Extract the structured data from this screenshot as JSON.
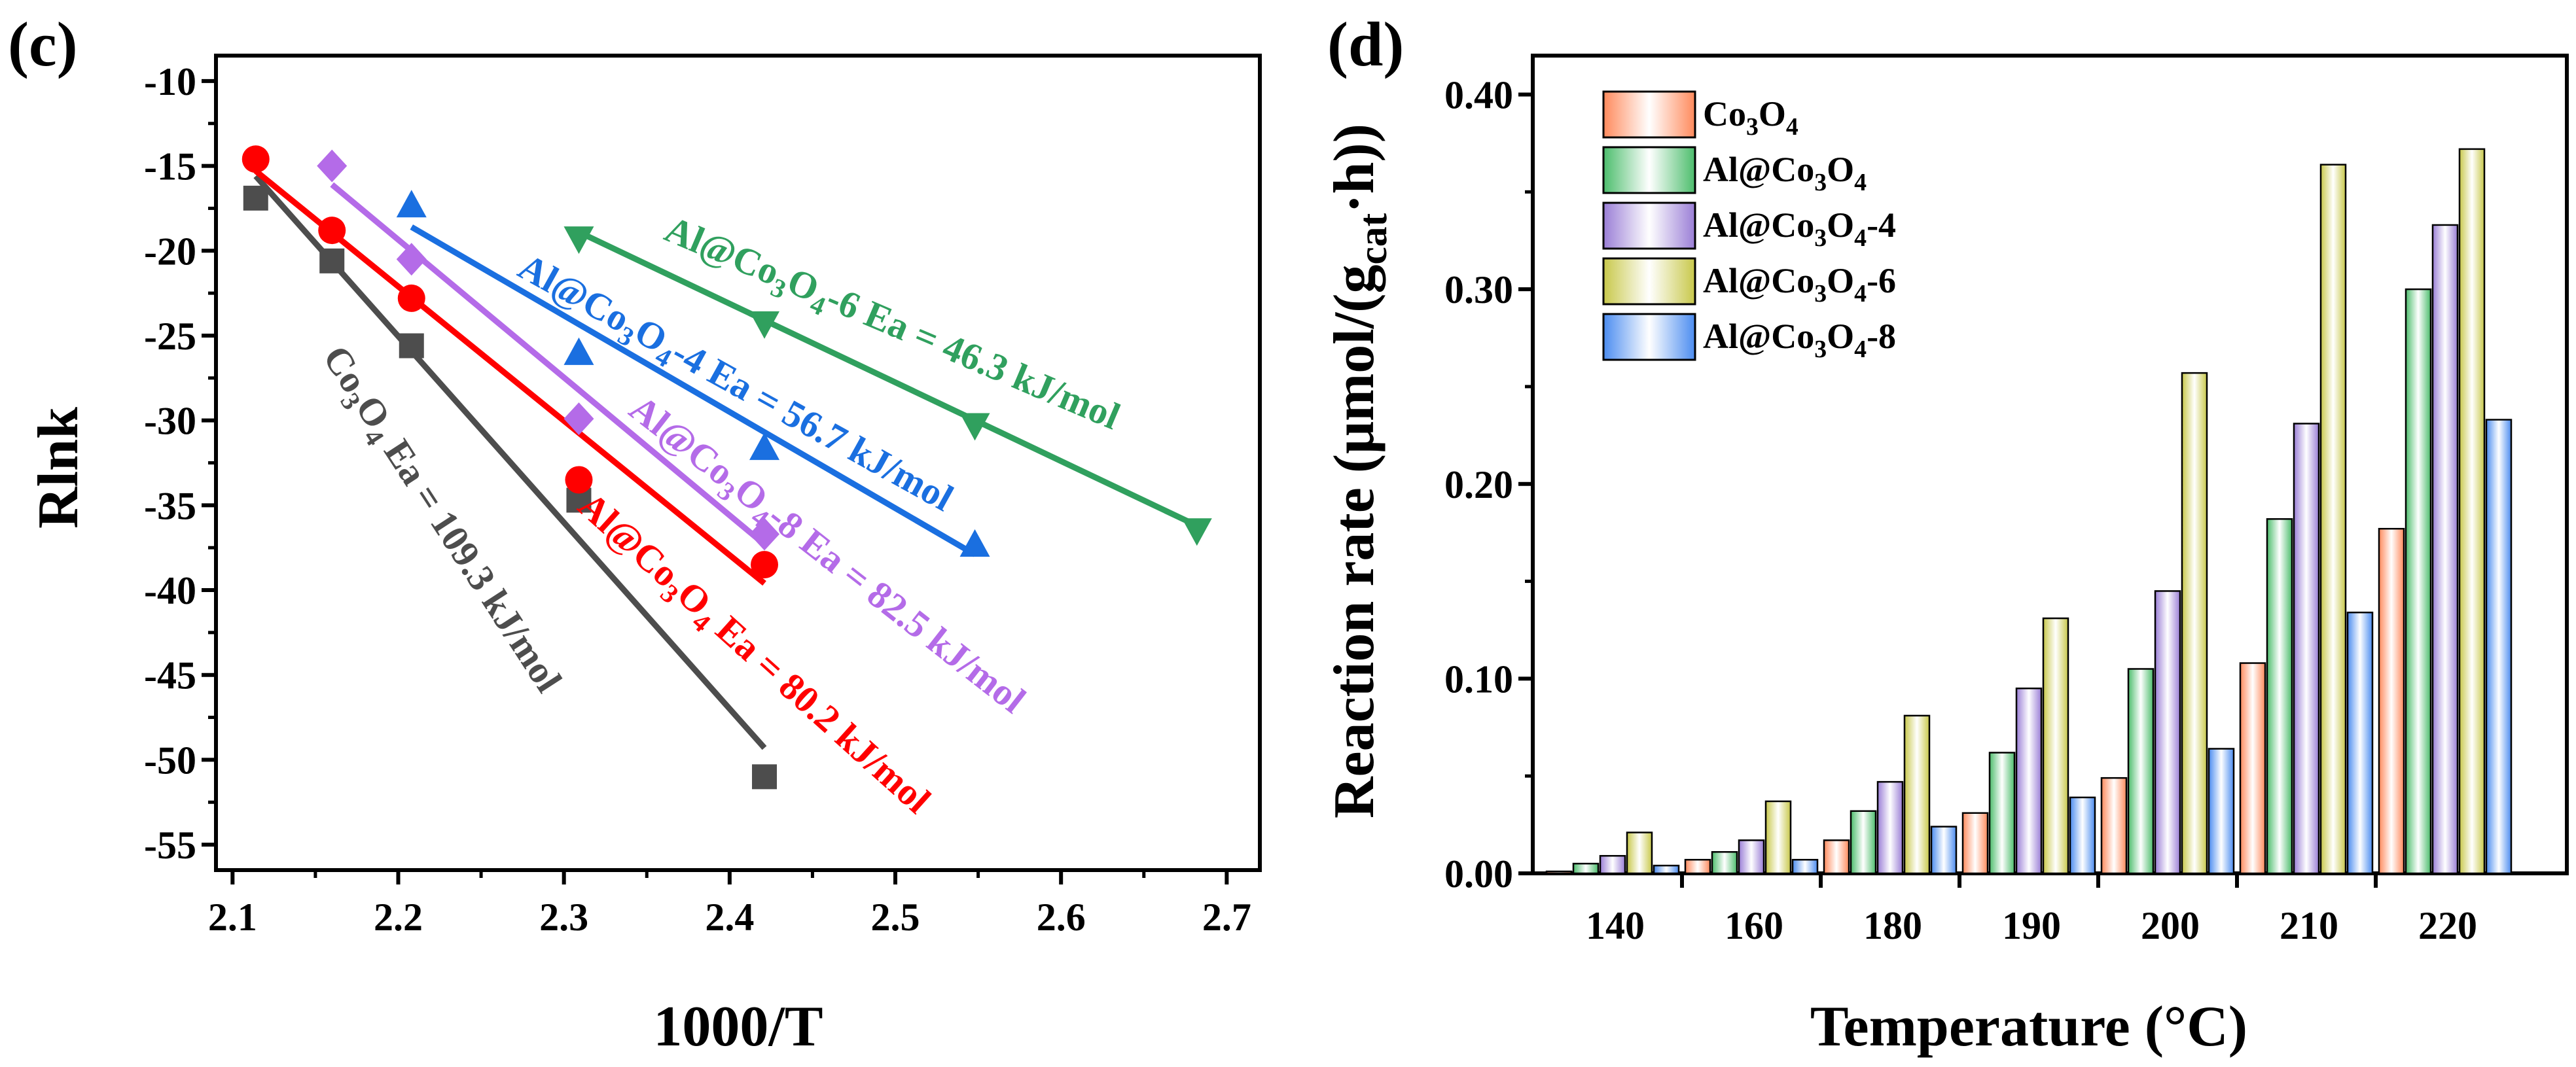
{
  "chart_data": [
    {
      "type": "scatter",
      "panel_label": "(c)",
      "title": "",
      "xlabel": "1000/T",
      "ylabel": "Rlnk",
      "xlim": [
        2.09,
        2.72
      ],
      "ylim": [
        -56.5,
        -8.5
      ],
      "xticks": [
        2.1,
        2.2,
        2.3,
        2.4,
        2.5,
        2.6,
        2.7
      ],
      "xtick_labels": [
        "2.1",
        "2.2",
        "2.3",
        "2.4",
        "2.5",
        "2.6",
        "2.7"
      ],
      "yticks": [
        -10,
        -15,
        -20,
        -25,
        -30,
        -35,
        -40,
        -45,
        -50,
        -55
      ],
      "ytick_labels": [
        "-10",
        "-15",
        "-20",
        "-25",
        "-30",
        "-35",
        "-40",
        "-45",
        "-50",
        "-55"
      ],
      "grid": false,
      "series": [
        {
          "name": "Co3O4",
          "color": "#4d4d4d",
          "marker": "square",
          "x": [
            2.114,
            2.16,
            2.208,
            2.309,
            2.421
          ],
          "y": [
            -16.9,
            -20.6,
            -25.6,
            -34.7,
            -51.0
          ],
          "fit_x": [
            2.114,
            2.421
          ],
          "fit_y": [
            -15.6,
            -49.3
          ],
          "label_parts": [
            {
              "t": "Co",
              "s": "n"
            },
            {
              "t": "3",
              "s": "sub"
            },
            {
              "t": "O",
              "s": "n"
            },
            {
              "t": "4",
              "s": "sub"
            },
            {
              "t": " Ea = 109.3 kJ/mol",
              "s": "n"
            }
          ]
        },
        {
          "name": "Al@Co3O4",
          "color": "#ff0000",
          "marker": "circle",
          "x": [
            2.114,
            2.16,
            2.208,
            2.309,
            2.421
          ],
          "y": [
            -14.6,
            -18.8,
            -22.8,
            -33.5,
            -38.5
          ],
          "fit_x": [
            2.114,
            2.421
          ],
          "fit_y": [
            -15.3,
            -39.6
          ],
          "label_parts": [
            {
              "t": "Al@Co",
              "s": "n"
            },
            {
              "t": "3",
              "s": "sub"
            },
            {
              "t": "O",
              "s": "n"
            },
            {
              "t": "4",
              "s": "sub"
            },
            {
              "t": " Ea = 80.2 kJ/mol",
              "s": "n"
            }
          ]
        },
        {
          "name": "Al@Co3O4-8",
          "color": "#b46be8",
          "marker": "diamond",
          "x": [
            2.16,
            2.208,
            2.309,
            2.421
          ],
          "y": [
            -15.0,
            -20.5,
            -29.9,
            -36.7
          ],
          "fit_x": [
            2.16,
            2.421
          ],
          "fit_y": [
            -16.1,
            -37.3
          ],
          "label_parts": [
            {
              "t": "Al@Co",
              "s": "n"
            },
            {
              "t": "3",
              "s": "sub"
            },
            {
              "t": "O",
              "s": "n"
            },
            {
              "t": "4",
              "s": "sub"
            },
            {
              "t": "-8 Ea = 82.5 kJ/mol",
              "s": "n"
            }
          ]
        },
        {
          "name": "Al@Co3O4-4",
          "color": "#1a6fe0",
          "marker": "triangle-up",
          "x": [
            2.208,
            2.309,
            2.421,
            2.548
          ],
          "y": [
            -17.3,
            -26.0,
            -31.6,
            -37.3
          ],
          "fit_x": [
            2.208,
            2.548
          ],
          "fit_y": [
            -18.6,
            -37.9
          ],
          "label_parts": [
            {
              "t": "Al@Co",
              "s": "n"
            },
            {
              "t": "3",
              "s": "sub"
            },
            {
              "t": "O",
              "s": "n"
            },
            {
              "t": "4",
              "s": "sub"
            },
            {
              "t": "-4 Ea = 56.7 kJ/mol",
              "s": "n"
            }
          ]
        },
        {
          "name": "Al@Co3O4-6",
          "color": "#30a05e",
          "marker": "triangle-down",
          "x": [
            2.309,
            2.421,
            2.548,
            2.682
          ],
          "y": [
            -19.3,
            -24.3,
            -30.3,
            -36.5
          ],
          "fit_x": [
            2.309,
            2.682
          ],
          "fit_y": [
            -18.9,
            -36.2
          ],
          "label_parts": [
            {
              "t": "Al@Co",
              "s": "n"
            },
            {
              "t": "3",
              "s": "sub"
            },
            {
              "t": "O",
              "s": "n"
            },
            {
              "t": "4",
              "s": "sub"
            },
            {
              "t": "-6 Ea = 46.3 kJ/mol",
              "s": "n"
            }
          ]
        }
      ]
    },
    {
      "type": "bar",
      "panel_label": "(d)",
      "title": "",
      "xlabel": "Temperature (°C)",
      "ylabel_parts": [
        {
          "t": "Reaction rate (μmol/(g",
          "s": "n"
        },
        {
          "t": "cat",
          "s": "sub"
        },
        {
          "t": "·h))",
          "s": "n"
        }
      ],
      "ylim": [
        0,
        0.42
      ],
      "yticks": [
        0.0,
        0.1,
        0.2,
        0.3,
        0.4
      ],
      "ytick_labels": [
        "0.00",
        "0.10",
        "0.20",
        "0.30",
        "0.40"
      ],
      "categories": [
        "140",
        "160",
        "180",
        "190",
        "200",
        "210",
        "220"
      ],
      "legend_position": "top-left",
      "grid": false,
      "series": [
        {
          "name": "Co3O4",
          "color": "#ff8a5c",
          "values": [
            0.001,
            0.007,
            0.017,
            0.031,
            0.049,
            0.108,
            0.177
          ],
          "label_parts": [
            {
              "t": "Co",
              "s": "n"
            },
            {
              "t": "3",
              "s": "sub"
            },
            {
              "t": "O",
              "s": "n"
            },
            {
              "t": "4",
              "s": "sub"
            }
          ]
        },
        {
          "name": "Al@Co3O4",
          "color": "#4cbd6c",
          "values": [
            0.005,
            0.011,
            0.032,
            0.062,
            0.105,
            0.182,
            0.3
          ],
          "label_parts": [
            {
              "t": "Al@Co",
              "s": "n"
            },
            {
              "t": "3",
              "s": "sub"
            },
            {
              "t": "O",
              "s": "n"
            },
            {
              "t": "4",
              "s": "sub"
            }
          ]
        },
        {
          "name": "Al@Co3O4-4",
          "color": "#9a7ed6",
          "values": [
            0.009,
            0.017,
            0.047,
            0.095,
            0.145,
            0.231,
            0.333
          ],
          "label_parts": [
            {
              "t": "Al@Co",
              "s": "n"
            },
            {
              "t": "3",
              "s": "sub"
            },
            {
              "t": "O",
              "s": "n"
            },
            {
              "t": "4",
              "s": "sub"
            },
            {
              "t": "-4",
              "s": "n"
            }
          ]
        },
        {
          "name": "Al@Co3O4-6",
          "color": "#c8c84a",
          "values": [
            0.021,
            0.037,
            0.081,
            0.131,
            0.257,
            0.364,
            0.372
          ],
          "label_parts": [
            {
              "t": "Al@Co",
              "s": "n"
            },
            {
              "t": "3",
              "s": "sub"
            },
            {
              "t": "O",
              "s": "n"
            },
            {
              "t": "4",
              "s": "sub"
            },
            {
              "t": "-6",
              "s": "n"
            }
          ]
        },
        {
          "name": "Al@Co3O4-8",
          "color": "#4b8cf0",
          "values": [
            0.004,
            0.007,
            0.024,
            0.039,
            0.064,
            0.134,
            0.233
          ],
          "label_parts": [
            {
              "t": "Al@Co",
              "s": "n"
            },
            {
              "t": "3",
              "s": "sub"
            },
            {
              "t": "O",
              "s": "n"
            },
            {
              "t": "4",
              "s": "sub"
            },
            {
              "t": "-8",
              "s": "n"
            }
          ]
        }
      ]
    }
  ]
}
